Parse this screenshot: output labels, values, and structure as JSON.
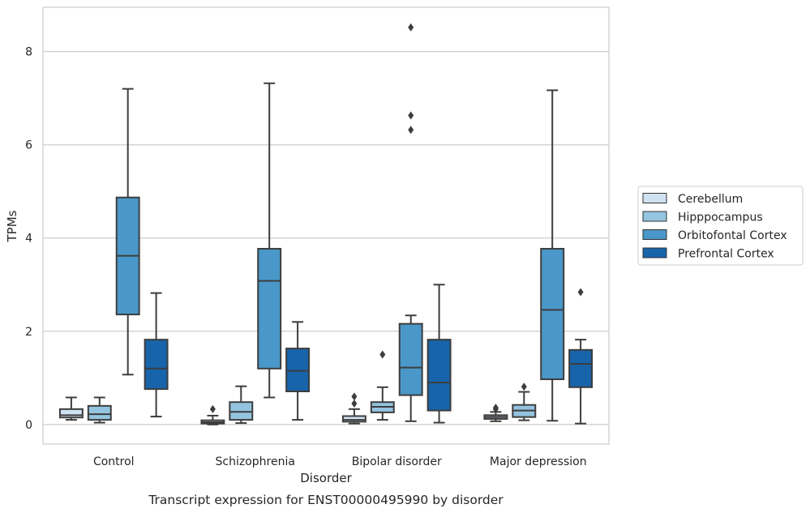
{
  "chart_data": {
    "type": "box",
    "title": "Transcript expression for ENST00000495990 by disorder",
    "xlabel": "Disorder",
    "ylabel": "TPMs",
    "ylim": [
      -0.42,
      8.95
    ],
    "yticks": [
      0,
      2,
      4,
      6,
      8
    ],
    "grid": "horizontal",
    "legend_position": "right",
    "categories": [
      "Control",
      "Schizophrenia",
      "Bipolar disorder",
      "Major depression"
    ],
    "series": [
      {
        "name": "Cerebellum",
        "color": "#d0e1f2",
        "boxes": [
          {
            "whislo": 0.1,
            "q1": 0.15,
            "med": 0.2,
            "q3": 0.33,
            "whishi": 0.58,
            "fliers": []
          },
          {
            "whislo": 0.0,
            "q1": 0.02,
            "med": 0.05,
            "q3": 0.09,
            "whishi": 0.19,
            "fliers": [
              0.33
            ]
          },
          {
            "whislo": 0.02,
            "q1": 0.06,
            "med": 0.1,
            "q3": 0.18,
            "whishi": 0.33,
            "fliers": [
              0.45,
              0.6
            ]
          },
          {
            "whislo": 0.07,
            "q1": 0.12,
            "med": 0.16,
            "q3": 0.2,
            "whishi": 0.27,
            "fliers": [
              0.33,
              0.36
            ]
          }
        ]
      },
      {
        "name": "Hipppocampus",
        "color": "#94c4df",
        "boxes": [
          {
            "whislo": 0.04,
            "q1": 0.1,
            "med": 0.22,
            "q3": 0.4,
            "whishi": 0.58,
            "fliers": []
          },
          {
            "whislo": 0.03,
            "q1": 0.1,
            "med": 0.27,
            "q3": 0.48,
            "whishi": 0.82,
            "fliers": []
          },
          {
            "whislo": 0.1,
            "q1": 0.26,
            "med": 0.38,
            "q3": 0.48,
            "whishi": 0.8,
            "fliers": [
              1.5
            ]
          },
          {
            "whislo": 0.09,
            "q1": 0.16,
            "med": 0.3,
            "q3": 0.42,
            "whishi": 0.7,
            "fliers": [
              0.81
            ]
          }
        ]
      },
      {
        "name": "Orbitofontal Cortex",
        "color": "#4a98c9",
        "boxes": [
          {
            "whislo": 1.07,
            "q1": 2.36,
            "med": 3.62,
            "q3": 4.87,
            "whishi": 7.2,
            "fliers": []
          },
          {
            "whislo": 0.58,
            "q1": 1.2,
            "med": 3.08,
            "q3": 3.77,
            "whishi": 7.32,
            "fliers": []
          },
          {
            "whislo": 0.07,
            "q1": 0.63,
            "med": 1.22,
            "q3": 2.16,
            "whishi": 2.34,
            "fliers": [
              6.32,
              6.63,
              8.52
            ]
          },
          {
            "whislo": 0.08,
            "q1": 0.97,
            "med": 2.46,
            "q3": 3.77,
            "whishi": 7.17,
            "fliers": []
          }
        ]
      },
      {
        "name": "Prefrontal Cortex",
        "color": "#1764ab",
        "boxes": [
          {
            "whislo": 0.17,
            "q1": 0.76,
            "med": 1.2,
            "q3": 1.82,
            "whishi": 2.82,
            "fliers": []
          },
          {
            "whislo": 0.1,
            "q1": 0.71,
            "med": 1.15,
            "q3": 1.63,
            "whishi": 2.2,
            "fliers": []
          },
          {
            "whislo": 0.04,
            "q1": 0.3,
            "med": 0.9,
            "q3": 1.82,
            "whishi": 3.0,
            "fliers": []
          },
          {
            "whislo": 0.02,
            "q1": 0.8,
            "med": 1.3,
            "q3": 1.6,
            "whishi": 1.82,
            "fliers": [
              2.84
            ]
          }
        ]
      }
    ]
  }
}
